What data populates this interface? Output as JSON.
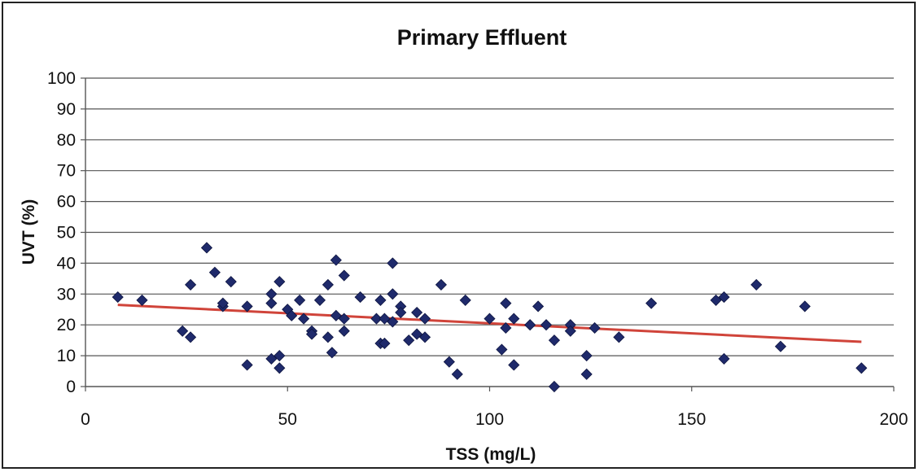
{
  "chart_data": {
    "type": "scatter",
    "title": "Primary Effluent",
    "xlabel": "TSS (mg/L)",
    "ylabel": "UVT (%)",
    "xlim": [
      0,
      200
    ],
    "ylim": [
      0,
      100
    ],
    "xticks": [
      0,
      50,
      100,
      150,
      200
    ],
    "yticks": [
      0,
      10,
      20,
      30,
      40,
      50,
      60,
      70,
      80,
      90,
      100
    ],
    "grid": "horizontal",
    "legend": "none",
    "marker_color": "#1F2A6B",
    "trendline_color": "#D0443A",
    "series": [
      {
        "points": [
          [
            8,
            29
          ],
          [
            14,
            28
          ],
          [
            24,
            18
          ],
          [
            26,
            16
          ],
          [
            26,
            33
          ],
          [
            30,
            45
          ],
          [
            32,
            37
          ],
          [
            34,
            26
          ],
          [
            34,
            27
          ],
          [
            36,
            34
          ],
          [
            40,
            26
          ],
          [
            40,
            7
          ],
          [
            46,
            30
          ],
          [
            46,
            27
          ],
          [
            46,
            9
          ],
          [
            48,
            10
          ],
          [
            48,
            6
          ],
          [
            48,
            34
          ],
          [
            50,
            25
          ],
          [
            51,
            23
          ],
          [
            53,
            28
          ],
          [
            54,
            22
          ],
          [
            56,
            18
          ],
          [
            56,
            17
          ],
          [
            58,
            28
          ],
          [
            60,
            33
          ],
          [
            60,
            16
          ],
          [
            61,
            11
          ],
          [
            62,
            41
          ],
          [
            62,
            23
          ],
          [
            64,
            36
          ],
          [
            64,
            22
          ],
          [
            64,
            18
          ],
          [
            68,
            29
          ],
          [
            72,
            22
          ],
          [
            73,
            28
          ],
          [
            73,
            14
          ],
          [
            74,
            14
          ],
          [
            74,
            22
          ],
          [
            76,
            40
          ],
          [
            76,
            30
          ],
          [
            76,
            21
          ],
          [
            78,
            26
          ],
          [
            78,
            24
          ],
          [
            80,
            15
          ],
          [
            82,
            24
          ],
          [
            82,
            17
          ],
          [
            84,
            22
          ],
          [
            84,
            16
          ],
          [
            88,
            33
          ],
          [
            90,
            8
          ],
          [
            92,
            4
          ],
          [
            94,
            28
          ],
          [
            100,
            22
          ],
          [
            103,
            12
          ],
          [
            104,
            27
          ],
          [
            104,
            19
          ],
          [
            106,
            22
          ],
          [
            106,
            7
          ],
          [
            110,
            20
          ],
          [
            112,
            26
          ],
          [
            114,
            20
          ],
          [
            116,
            15
          ],
          [
            116,
            0
          ],
          [
            120,
            20
          ],
          [
            120,
            18
          ],
          [
            124,
            10
          ],
          [
            124,
            4
          ],
          [
            126,
            19
          ],
          [
            132,
            16
          ],
          [
            140,
            27
          ],
          [
            156,
            28
          ],
          [
            158,
            29
          ],
          [
            158,
            9
          ],
          [
            166,
            33
          ],
          [
            172,
            13
          ],
          [
            178,
            26
          ],
          [
            192,
            6
          ]
        ]
      }
    ],
    "trendline": {
      "x": [
        8,
        192
      ],
      "y": [
        26.5,
        14.5
      ]
    }
  }
}
